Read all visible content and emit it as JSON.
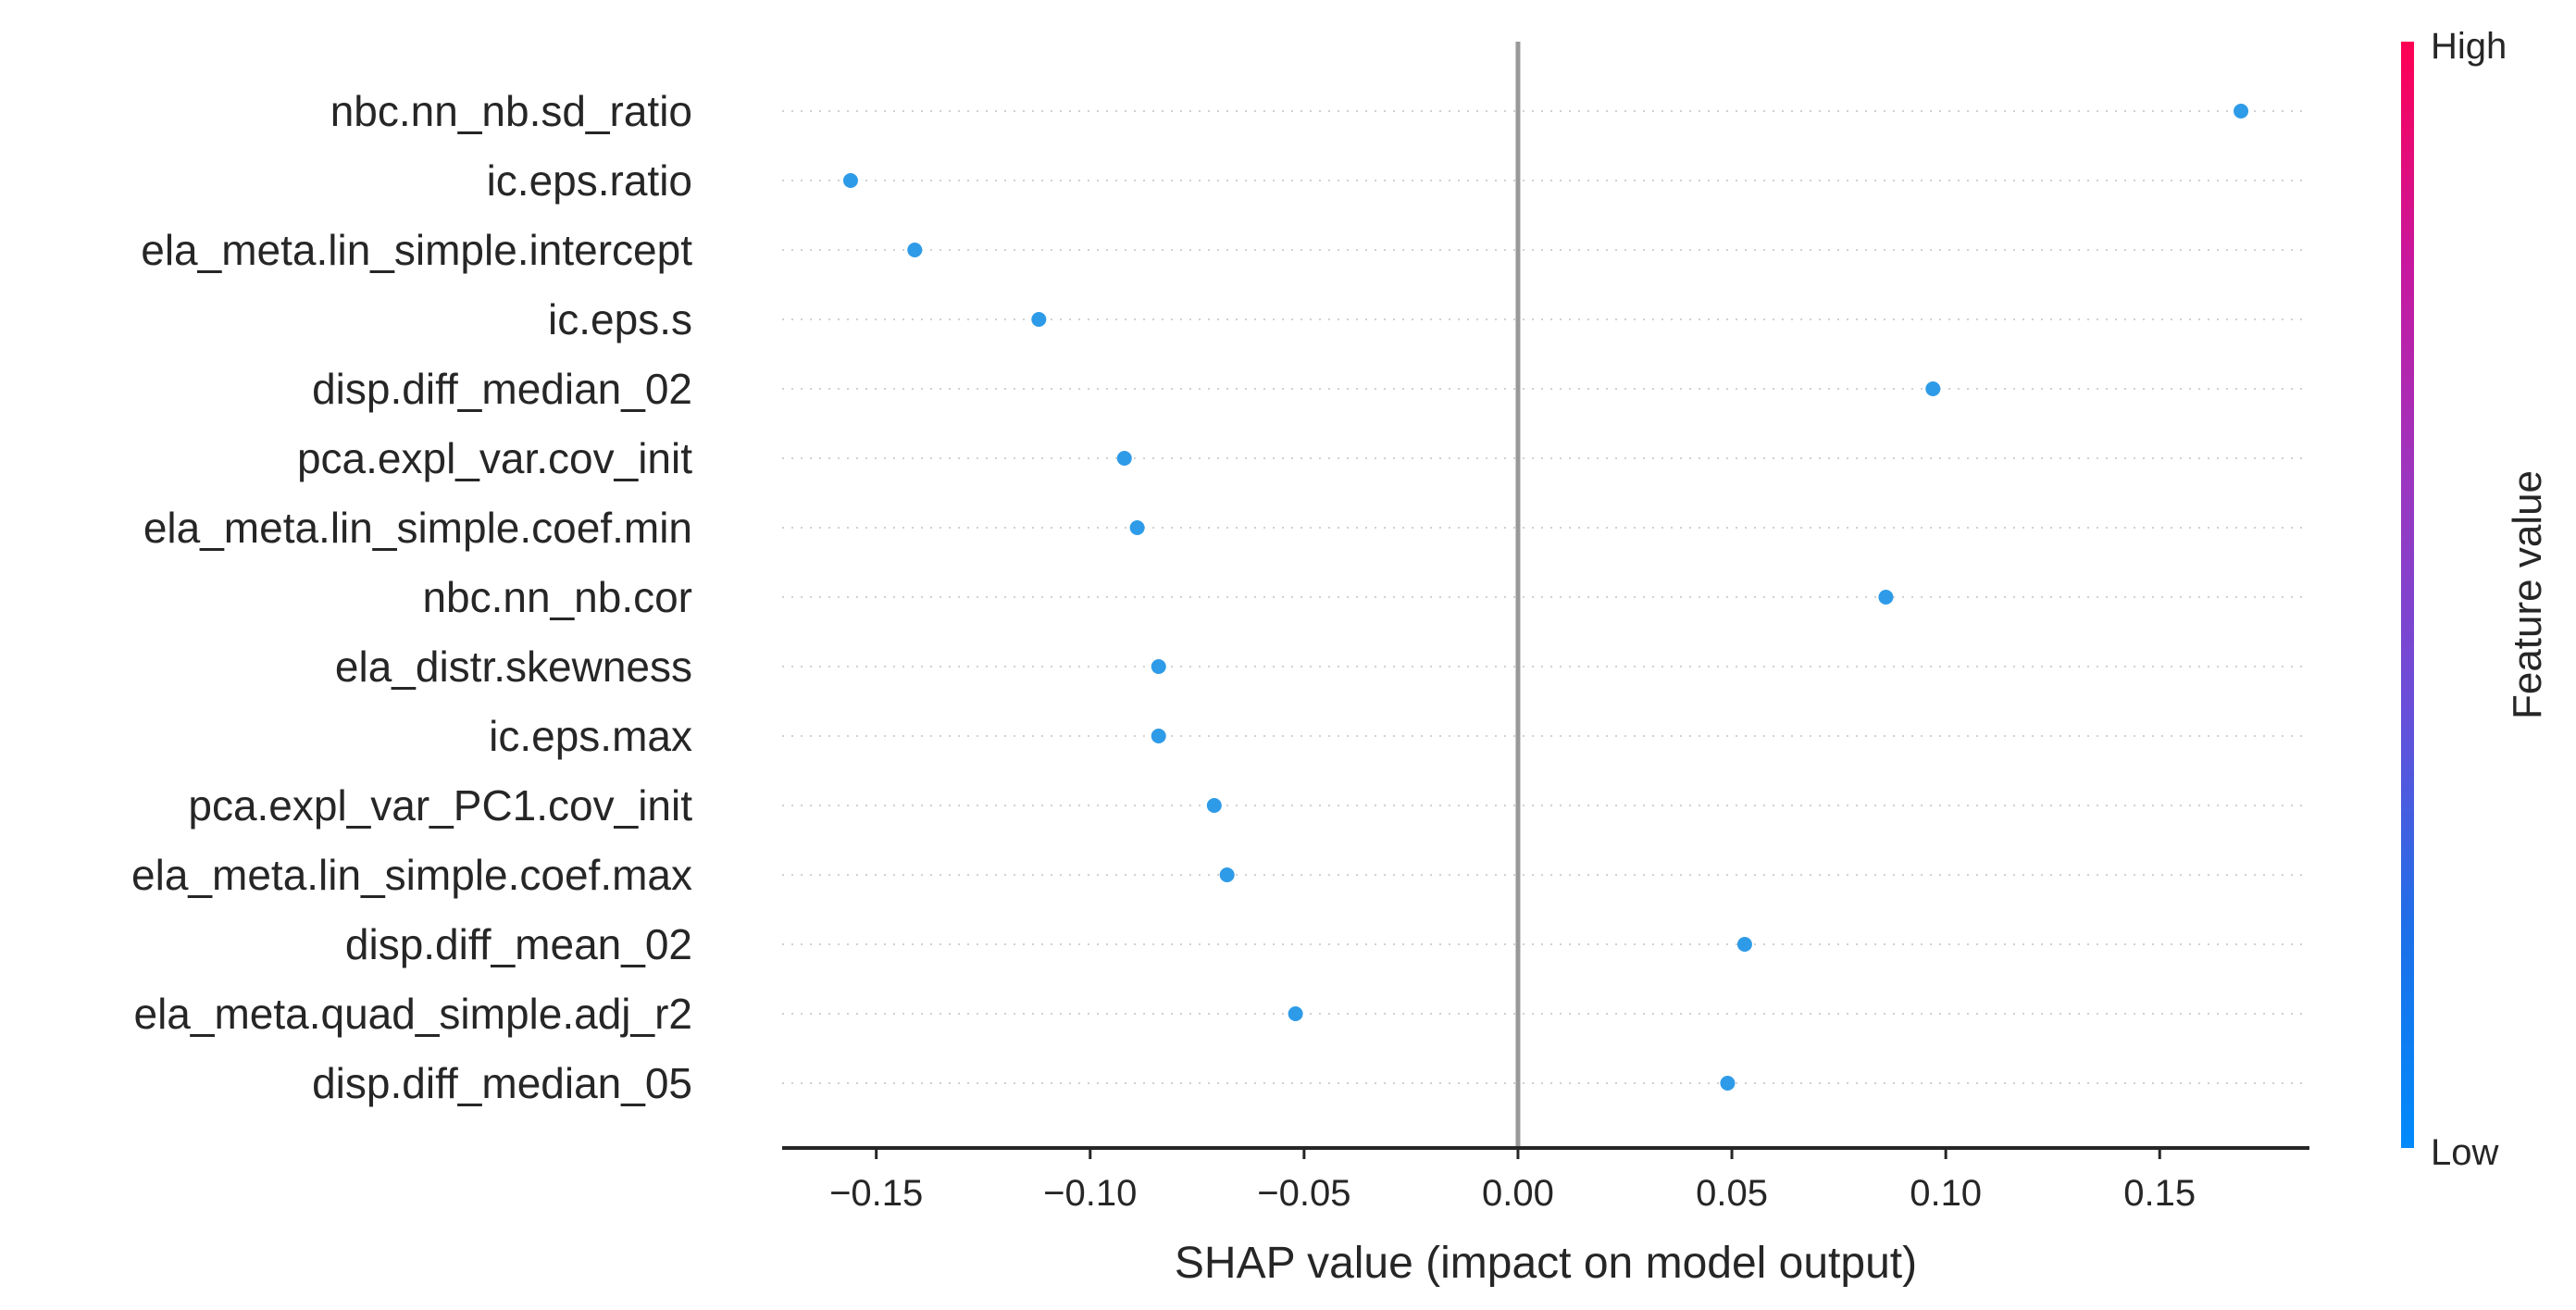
{
  "chart_data": {
    "type": "scatter",
    "xlabel": "SHAP value (impact on model output)",
    "xlim": [
      -0.172,
      0.185
    ],
    "xticks": [
      -0.15,
      -0.1,
      -0.05,
      0.0,
      0.05,
      0.1,
      0.15
    ],
    "xtick_labels": [
      "−0.15",
      "−0.10",
      "−0.05",
      "0.00",
      "0.05",
      "0.10",
      "0.15"
    ],
    "features": [
      "nbc.nn_nb.sd_ratio",
      "ic.eps.ratio",
      "ela_meta.lin_simple.intercept",
      "ic.eps.s",
      "disp.diff_median_02",
      "pca.expl_var.cov_init",
      "ela_meta.lin_simple.coef.min",
      "nbc.nn_nb.cor",
      "ela_distr.skewness",
      "ic.eps.max",
      "pca.expl_var_PC1.cov_init",
      "ela_meta.lin_simple.coef.max",
      "disp.diff_mean_02",
      "ela_meta.quad_simple.adj_r2",
      "disp.diff_median_05"
    ],
    "values": [
      0.169,
      -0.156,
      -0.141,
      -0.112,
      0.097,
      -0.092,
      -0.089,
      0.086,
      -0.084,
      -0.084,
      -0.071,
      -0.068,
      0.053,
      -0.052,
      0.049
    ],
    "point_color": "#2e9be8",
    "colorbar": {
      "title": "Feature value",
      "high_label": "High",
      "low_label": "Low",
      "colors": [
        "#008afb",
        "#1e6fe8",
        "#6a4ed9",
        "#9b36c0",
        "#c8179e",
        "#ff0052"
      ]
    },
    "grid_rows": "dotted"
  }
}
